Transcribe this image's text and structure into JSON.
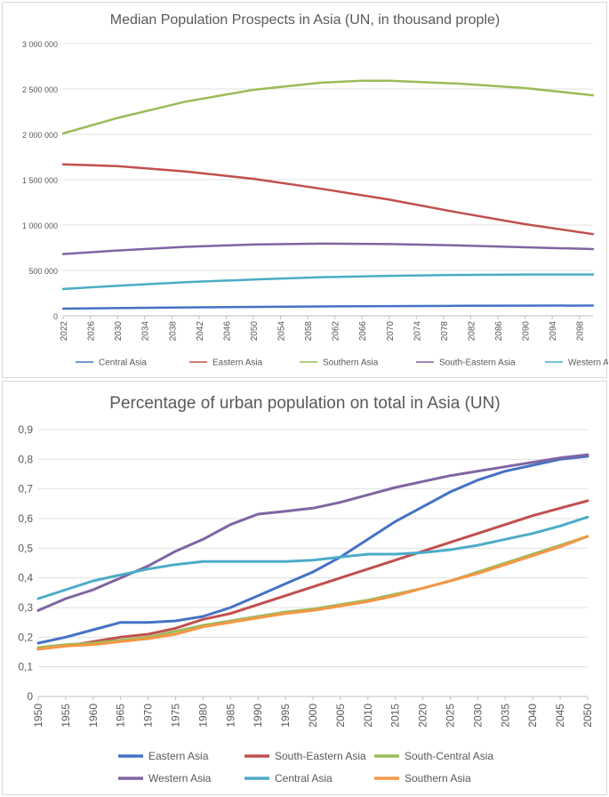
{
  "chart_data": [
    {
      "type": "line",
      "title": "Median Population Prospects in Asia (UN, in thousand prople)",
      "xlabel": "",
      "ylabel": "",
      "ylim": [
        0,
        3000000
      ],
      "y_ticks": [
        "0",
        "500 000",
        "1 000 000",
        "1 500 000",
        "2 000 000",
        "2 500 000",
        "3 000 000"
      ],
      "x_ticks": [
        "2022",
        "2026",
        "2030",
        "2034",
        "2038",
        "2042",
        "2046",
        "2050",
        "2054",
        "2058",
        "2062",
        "2066",
        "2070",
        "2074",
        "2078",
        "2082",
        "2086",
        "2090",
        "2094",
        "2098"
      ],
      "x_range": [
        2022,
        2100
      ],
      "grid": true,
      "legend_position": "bottom",
      "series": [
        {
          "name": "Central Asia",
          "color": "#4472c4",
          "x": [
            2022,
            2040,
            2060,
            2080,
            2100
          ],
          "values": [
            78000,
            92000,
            103000,
            110000,
            113000
          ]
        },
        {
          "name": "Eastern Asia",
          "color": "#c0504d",
          "x": [
            2022,
            2030,
            2040,
            2050,
            2060,
            2070,
            2080,
            2090,
            2100
          ],
          "values": [
            1670000,
            1650000,
            1590000,
            1510000,
            1400000,
            1280000,
            1140000,
            1010000,
            900000
          ]
        },
        {
          "name": "Southern Asia",
          "color": "#9bbb59",
          "x": [
            2022,
            2030,
            2040,
            2050,
            2060,
            2066,
            2070,
            2080,
            2090,
            2100
          ],
          "values": [
            2010000,
            2180000,
            2360000,
            2490000,
            2570000,
            2590000,
            2590000,
            2560000,
            2510000,
            2430000
          ]
        },
        {
          "name": "South-Eastern Asia",
          "color": "#8064a2",
          "x": [
            2022,
            2030,
            2040,
            2050,
            2060,
            2070,
            2080,
            2090,
            2100
          ],
          "values": [
            680000,
            720000,
            760000,
            785000,
            795000,
            790000,
            775000,
            755000,
            735000
          ]
        },
        {
          "name": "Western Asia",
          "color": "#4bacc6",
          "x": [
            2022,
            2030,
            2040,
            2050,
            2060,
            2070,
            2080,
            2090,
            2100
          ],
          "values": [
            295000,
            330000,
            370000,
            400000,
            425000,
            440000,
            450000,
            455000,
            455000
          ]
        }
      ]
    },
    {
      "type": "line",
      "title": "Percentage of urban population on total in Asia (UN)",
      "xlabel": "",
      "ylabel": "",
      "ylim": [
        0,
        0.9
      ],
      "y_ticks": [
        "0",
        "0,1",
        "0,2",
        "0,3",
        "0,4",
        "0,5",
        "0,6",
        "0,7",
        "0,8",
        "0,9"
      ],
      "x_ticks": [
        "1950",
        "1955",
        "1960",
        "1965",
        "1970",
        "1975",
        "1980",
        "1985",
        "1990",
        "1995",
        "2000",
        "2005",
        "2010",
        "2015",
        "2020",
        "2025",
        "2030",
        "2035",
        "2040",
        "2045",
        "2050"
      ],
      "x_range": [
        1950,
        2050
      ],
      "grid": true,
      "legend_position": "bottom",
      "series": [
        {
          "name": "Eastern Asia",
          "color": "#4472c4",
          "x": [
            1950,
            1955,
            1960,
            1965,
            1970,
            1975,
            1980,
            1985,
            1990,
            1995,
            2000,
            2005,
            2010,
            2015,
            2020,
            2025,
            2030,
            2035,
            2040,
            2045,
            2050
          ],
          "values": [
            0.18,
            0.2,
            0.225,
            0.25,
            0.25,
            0.255,
            0.27,
            0.3,
            0.34,
            0.38,
            0.42,
            0.47,
            0.53,
            0.59,
            0.64,
            0.69,
            0.73,
            0.76,
            0.78,
            0.8,
            0.81
          ]
        },
        {
          "name": "South-Eastern Asia",
          "color": "#c0504d",
          "x": [
            1950,
            1955,
            1960,
            1965,
            1970,
            1975,
            1980,
            1985,
            1990,
            1995,
            2000,
            2005,
            2010,
            2015,
            2020,
            2025,
            2030,
            2035,
            2040,
            2045,
            2050
          ],
          "values": [
            0.16,
            0.17,
            0.185,
            0.2,
            0.21,
            0.23,
            0.26,
            0.28,
            0.31,
            0.34,
            0.37,
            0.4,
            0.43,
            0.46,
            0.49,
            0.52,
            0.55,
            0.58,
            0.61,
            0.635,
            0.66
          ]
        },
        {
          "name": "South-Central Asia",
          "color": "#9bbb59",
          "x": [
            1950,
            1955,
            1960,
            1965,
            1970,
            1975,
            1980,
            1985,
            1990,
            1995,
            2000,
            2005,
            2010,
            2015,
            2020,
            2025,
            2030,
            2035,
            2040,
            2045,
            2050
          ],
          "values": [
            0.165,
            0.175,
            0.18,
            0.19,
            0.2,
            0.22,
            0.24,
            0.255,
            0.27,
            0.285,
            0.295,
            0.31,
            0.325,
            0.345,
            0.365,
            0.39,
            0.42,
            0.45,
            0.48,
            0.51,
            0.54
          ]
        },
        {
          "name": "Western Asia",
          "color": "#8064a2",
          "x": [
            1950,
            1955,
            1960,
            1965,
            1970,
            1975,
            1980,
            1985,
            1990,
            1995,
            2000,
            2005,
            2010,
            2015,
            2020,
            2025,
            2030,
            2035,
            2040,
            2045,
            2050
          ],
          "values": [
            0.29,
            0.33,
            0.36,
            0.4,
            0.44,
            0.49,
            0.53,
            0.58,
            0.615,
            0.625,
            0.635,
            0.655,
            0.68,
            0.705,
            0.725,
            0.745,
            0.76,
            0.775,
            0.79,
            0.805,
            0.815
          ]
        },
        {
          "name": "Central Asia",
          "color": "#4bacc6",
          "x": [
            1950,
            1955,
            1960,
            1965,
            1970,
            1975,
            1980,
            1985,
            1990,
            1995,
            2000,
            2005,
            2010,
            2015,
            2020,
            2025,
            2030,
            2035,
            2040,
            2045,
            2050
          ],
          "values": [
            0.33,
            0.36,
            0.39,
            0.41,
            0.43,
            0.445,
            0.455,
            0.455,
            0.455,
            0.455,
            0.46,
            0.47,
            0.48,
            0.48,
            0.485,
            0.495,
            0.51,
            0.53,
            0.55,
            0.575,
            0.605
          ]
        },
        {
          "name": "Southern Asia",
          "color": "#f79646",
          "x": [
            1950,
            1955,
            1960,
            1965,
            1970,
            1975,
            1980,
            1985,
            1990,
            1995,
            2000,
            2005,
            2010,
            2015,
            2020,
            2025,
            2030,
            2035,
            2040,
            2045,
            2050
          ],
          "values": [
            0.16,
            0.17,
            0.175,
            0.185,
            0.195,
            0.21,
            0.235,
            0.25,
            0.265,
            0.28,
            0.29,
            0.305,
            0.32,
            0.34,
            0.365,
            0.39,
            0.415,
            0.445,
            0.475,
            0.505,
            0.54
          ]
        }
      ]
    }
  ]
}
